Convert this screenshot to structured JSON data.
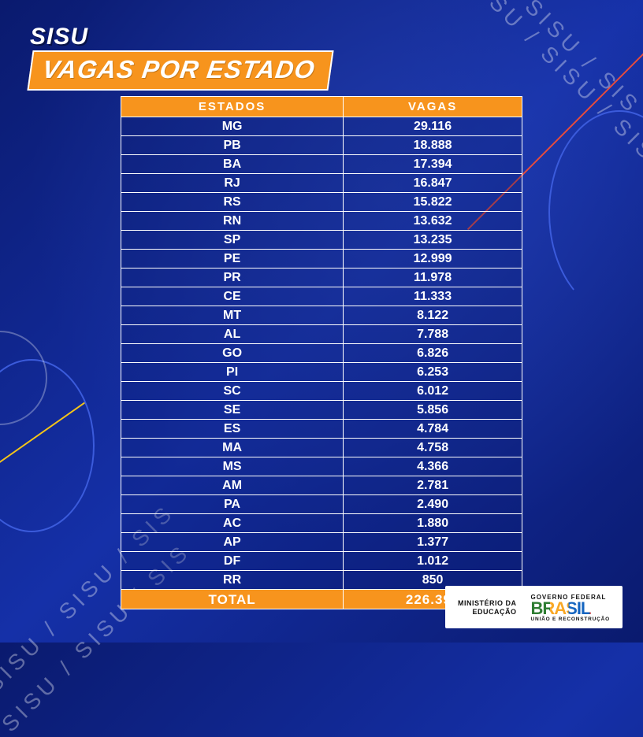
{
  "title": {
    "line1": "SISU",
    "line2": "VAGAS POR ESTADO"
  },
  "decoration": {
    "repeat_text": "SISU / SISU / SIS",
    "accent_orange": "#f7941d",
    "accent_red": "#e74c3c",
    "accent_yellow": "#f5c518",
    "curve_blue": "#3b5bdb",
    "bg_from": "#0a1a6e",
    "bg_to": "#1530a8"
  },
  "table": {
    "type": "table",
    "columns": [
      "ESTADOS",
      "VAGAS"
    ],
    "header_bg": "#f7941d",
    "header_color": "#ffffff",
    "cell_color": "#ffffff",
    "border_color": "#ffffff",
    "font_weight": 900,
    "rows": [
      [
        "MG",
        "29.116"
      ],
      [
        "PB",
        "18.888"
      ],
      [
        "BA",
        "17.394"
      ],
      [
        "RJ",
        "16.847"
      ],
      [
        "RS",
        "15.822"
      ],
      [
        "RN",
        "13.632"
      ],
      [
        "SP",
        "13.235"
      ],
      [
        "PE",
        "12.999"
      ],
      [
        "PR",
        "11.978"
      ],
      [
        "CE",
        "11.333"
      ],
      [
        "MT",
        "8.122"
      ],
      [
        "AL",
        "7.788"
      ],
      [
        "GO",
        "6.826"
      ],
      [
        "PI",
        "6.253"
      ],
      [
        "SC",
        "6.012"
      ],
      [
        "SE",
        "5.856"
      ],
      [
        "ES",
        "4.784"
      ],
      [
        "MA",
        "4.758"
      ],
      [
        "MS",
        "4.366"
      ],
      [
        "AM",
        "2.781"
      ],
      [
        "PA",
        "2.490"
      ],
      [
        "AC",
        "1.880"
      ],
      [
        "AP",
        "1.377"
      ],
      [
        "DF",
        "1.012"
      ],
      [
        "RR",
        "850"
      ]
    ],
    "total_row": [
      "TOTAL",
      "226.399"
    ],
    "total_bg": "#f7941d"
  },
  "footer": {
    "ministry_l1": "MINISTÉRIO DA",
    "ministry_l2": "EDUCAÇÃO",
    "gov_top": "GOVERNO FEDERAL",
    "gov_brand": "BRASIL",
    "gov_sub": "UNIÃO E RECONSTRUÇÃO"
  }
}
